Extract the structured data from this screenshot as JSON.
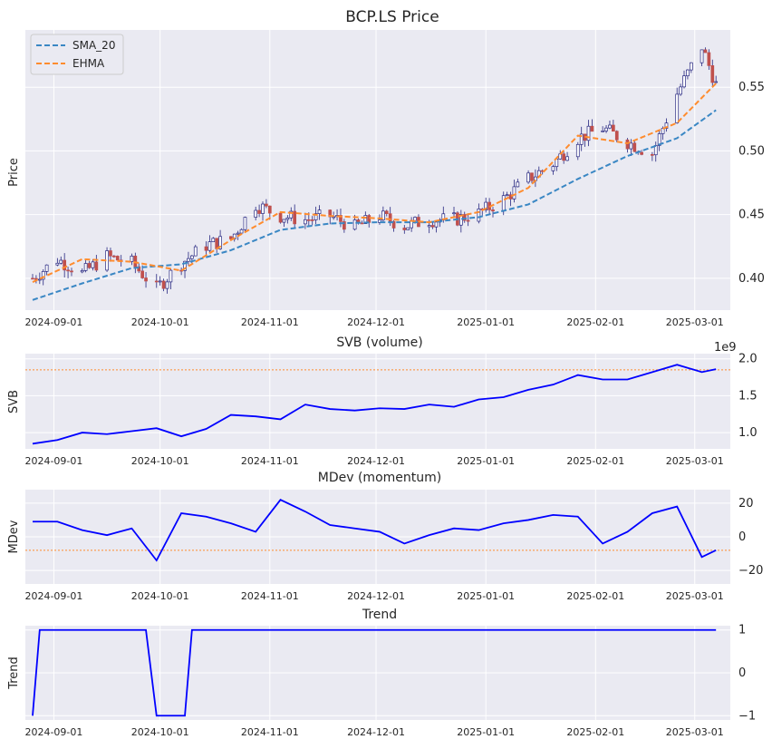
{
  "colors": {
    "panel_bg": "#EAEAF2",
    "grid": "#FFFFFF",
    "sma": "#3A87C4",
    "ehma": "#FF8C2E",
    "candle_up_edge": "#262680",
    "candle_down_fill": "#C0504D",
    "line": "#0000FF",
    "ref_line": "#FF8C2E"
  },
  "x_ticks": [
    "2024-09-01",
    "2024-10-01",
    "2024-11-01",
    "2024-12-01",
    "2025-01-01",
    "2025-02-01",
    "2025-03-01"
  ],
  "chart_data": [
    {
      "type": "line",
      "chart_kind": "candlestick",
      "title": "BCP.LS Price",
      "ylabel": "Price",
      "xlabel": "",
      "x_range": [
        "2024-08-26",
        "2025-03-09"
      ],
      "ylim": [
        0.375,
        0.595
      ],
      "yticks": [
        0.4,
        0.45,
        0.5,
        0.55
      ],
      "ytick_labels": [
        "0.40",
        "0.45",
        "0.50",
        "0.55"
      ],
      "grid": true,
      "legend": {
        "placement": "top-left",
        "entries": [
          "SMA_20",
          "EHMA"
        ]
      },
      "candles_close_series": {
        "x": [
          "2024-08-26",
          "2024-09-02",
          "2024-09-09",
          "2024-09-16",
          "2024-09-23",
          "2024-09-30",
          "2024-10-07",
          "2024-10-14",
          "2024-10-21",
          "2024-10-28",
          "2024-11-04",
          "2024-11-11",
          "2024-11-18",
          "2024-11-25",
          "2024-12-02",
          "2024-12-09",
          "2024-12-16",
          "2024-12-23",
          "2024-12-30",
          "2025-01-06",
          "2025-01-13",
          "2025-01-20",
          "2025-01-27",
          "2025-02-03",
          "2025-02-10",
          "2025-02-17",
          "2025-02-24",
          "2025-03-03",
          "2025-03-07"
        ],
        "close": [
          0.4,
          0.415,
          0.404,
          0.417,
          0.412,
          0.392,
          0.412,
          0.426,
          0.431,
          0.458,
          0.449,
          0.446,
          0.449,
          0.44,
          0.449,
          0.441,
          0.446,
          0.446,
          0.451,
          0.462,
          0.478,
          0.49,
          0.51,
          0.518,
          0.507,
          0.498,
          0.545,
          0.582,
          0.552
        ]
      },
      "series": [
        {
          "name": "SMA_20",
          "x": [
            "2024-08-26",
            "2024-09-09",
            "2024-09-23",
            "2024-10-07",
            "2024-10-21",
            "2024-11-04",
            "2024-11-18",
            "2024-12-02",
            "2024-12-16",
            "2024-12-30",
            "2025-01-13",
            "2025-01-27",
            "2025-02-10",
            "2025-02-24",
            "2025-03-07"
          ],
          "values": [
            0.383,
            0.396,
            0.408,
            0.411,
            0.422,
            0.438,
            0.443,
            0.444,
            0.444,
            0.448,
            0.458,
            0.478,
            0.496,
            0.51,
            0.532
          ]
        },
        {
          "name": "EHMA",
          "x": [
            "2024-08-26",
            "2024-09-09",
            "2024-09-23",
            "2024-10-07",
            "2024-10-21",
            "2024-11-04",
            "2024-11-18",
            "2024-12-02",
            "2024-12-16",
            "2024-12-30",
            "2025-01-13",
            "2025-01-27",
            "2025-02-10",
            "2025-02-24",
            "2025-03-07"
          ],
          "values": [
            0.397,
            0.415,
            0.413,
            0.406,
            0.43,
            0.452,
            0.449,
            0.447,
            0.444,
            0.452,
            0.471,
            0.512,
            0.506,
            0.522,
            0.553
          ]
        }
      ]
    },
    {
      "type": "line",
      "title": "SVB (volume)",
      "ylabel": "SVB",
      "scale_label": "1e9",
      "ylim": [
        0.78,
        2.07
      ],
      "yticks": [
        1.0,
        1.5,
        2.0
      ],
      "ytick_labels": [
        "1.0",
        "1.5",
        "2.0"
      ],
      "reference_line": 1.85,
      "grid": true,
      "series": [
        {
          "x": [
            "2024-08-26",
            "2024-09-02",
            "2024-09-09",
            "2024-09-16",
            "2024-09-23",
            "2024-09-30",
            "2024-10-07",
            "2024-10-14",
            "2024-10-21",
            "2024-10-28",
            "2024-11-04",
            "2024-11-11",
            "2024-11-18",
            "2024-11-25",
            "2024-12-02",
            "2024-12-09",
            "2024-12-16",
            "2024-12-23",
            "2024-12-30",
            "2025-01-06",
            "2025-01-13",
            "2025-01-20",
            "2025-01-27",
            "2025-02-03",
            "2025-02-10",
            "2025-02-17",
            "2025-02-24",
            "2025-03-03",
            "2025-03-07"
          ],
          "values": [
            0.85,
            0.9,
            1.0,
            0.98,
            1.02,
            1.06,
            0.95,
            1.05,
            1.24,
            1.22,
            1.18,
            1.38,
            1.32,
            1.3,
            1.33,
            1.32,
            1.38,
            1.35,
            1.45,
            1.48,
            1.58,
            1.65,
            1.78,
            1.72,
            1.72,
            1.82,
            1.92,
            1.82,
            1.86
          ]
        }
      ]
    },
    {
      "type": "line",
      "title": "MDev (momentum)",
      "ylabel": "MDev",
      "ylim": [
        -28,
        28
      ],
      "yticks": [
        20,
        0,
        -20
      ],
      "ytick_labels": [
        "20",
        "0",
        "−20"
      ],
      "reference_line": -8,
      "grid": true,
      "series": [
        {
          "x": [
            "2024-08-26",
            "2024-09-02",
            "2024-09-09",
            "2024-09-16",
            "2024-09-23",
            "2024-09-30",
            "2024-10-07",
            "2024-10-14",
            "2024-10-21",
            "2024-10-28",
            "2024-11-04",
            "2024-11-11",
            "2024-11-18",
            "2024-11-25",
            "2024-12-02",
            "2024-12-09",
            "2024-12-16",
            "2024-12-23",
            "2024-12-30",
            "2025-01-06",
            "2025-01-13",
            "2025-01-20",
            "2025-01-27",
            "2025-02-03",
            "2025-02-10",
            "2025-02-17",
            "2025-02-24",
            "2025-03-03",
            "2025-03-07"
          ],
          "values": [
            9,
            9,
            4,
            1,
            5,
            -14,
            14,
            12,
            8,
            3,
            22,
            15,
            7,
            5,
            3,
            -4,
            1,
            5,
            4,
            8,
            10,
            13,
            12,
            -4,
            3,
            14,
            18,
            -12,
            -8
          ]
        }
      ]
    },
    {
      "type": "line",
      "title": "Trend",
      "ylabel": "Trend",
      "ylim": [
        -1.1,
        1.1
      ],
      "yticks": [
        1,
        0,
        -1
      ],
      "ytick_labels": [
        "1",
        "0",
        "−1"
      ],
      "grid": true,
      "series": [
        {
          "x": [
            "2024-08-26",
            "2024-08-28",
            "2024-09-27",
            "2024-09-30",
            "2024-10-08",
            "2024-10-10",
            "2025-03-07"
          ],
          "values": [
            -1,
            1,
            1,
            -1,
            -1,
            1,
            1
          ]
        }
      ]
    }
  ]
}
